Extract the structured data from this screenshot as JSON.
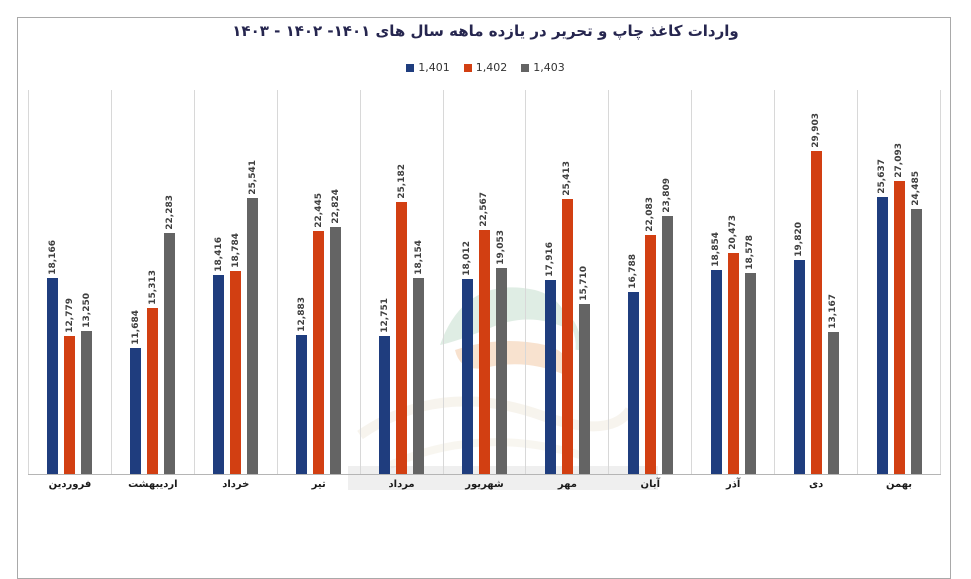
{
  "title": "واردات کاغذ چاپ و تحریر در یازده ماهه سال های ۱۴۰۱- ۱۴۰۲ - ۱۴۰۳",
  "legend": [
    {
      "label": "1,401",
      "color": "#1f3d7e"
    },
    {
      "label": "1,402",
      "color": "#d23f12"
    },
    {
      "label": "1,403",
      "color": "#646464"
    }
  ],
  "chart_data": {
    "type": "bar",
    "title": "واردات کاغذ چاپ و تحریر در یازده ماهه سال های ۱۴۰۱- ۱۴۰۲ - ۱۴۰۳",
    "categories": [
      "فروردین",
      "اردیبهشت",
      "خرداد",
      "تیر",
      "مرداد",
      "شهریور",
      "مهر",
      "آبان",
      "آذر",
      "دی",
      "بهمن"
    ],
    "series": [
      {
        "name": "1,401",
        "color": "#1f3d7e",
        "values": [
          18166,
          11684,
          18416,
          12883,
          12751,
          18012,
          17916,
          16788,
          18854,
          19820,
          25637
        ]
      },
      {
        "name": "1,402",
        "color": "#d23f12",
        "values": [
          12779,
          15313,
          18784,
          22445,
          25182,
          22567,
          25413,
          22083,
          20473,
          29903,
          27093
        ]
      },
      {
        "name": "1,403",
        "color": "#646464",
        "values": [
          13250,
          22283,
          25541,
          22824,
          18154,
          19053,
          15710,
          23809,
          18578,
          13167,
          24485
        ]
      }
    ],
    "xlabel": "",
    "ylabel": "",
    "ylim": [
      0,
      35500
    ],
    "grid": "vertical panel separators only",
    "legend_position": "top-center",
    "value_labels": "rotated 90deg above each bar, thousands separated"
  }
}
